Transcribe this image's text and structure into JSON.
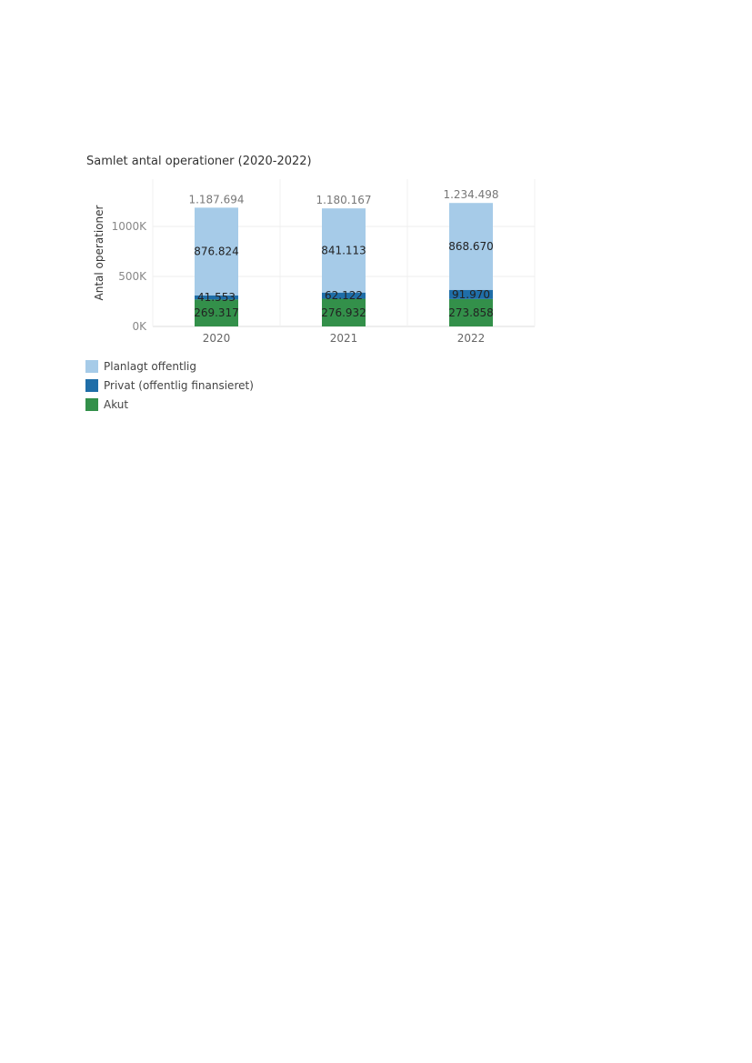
{
  "chart_data": {
    "type": "bar",
    "stacked": true,
    "title": "Samlet antal operationer (2020-2022)",
    "xlabel": "",
    "ylabel": "Antal operationer",
    "ylim": [
      0,
      1250000
    ],
    "yticks": [
      0,
      500000,
      1000000
    ],
    "ytick_labels": [
      "0K",
      "500K",
      "1000K"
    ],
    "categories": [
      "2020",
      "2021",
      "2022"
    ],
    "series": [
      {
        "name": "Akut",
        "color": "#33904a",
        "values": [
          269317,
          276932,
          273858
        ],
        "labels": [
          "269.317",
          "276.932",
          "273.858"
        ]
      },
      {
        "name": "Privat (offentlig finansieret)",
        "color": "#1f6ea8",
        "values": [
          41553,
          62122,
          91970
        ],
        "labels": [
          "41.553",
          "62.122",
          "91.970"
        ]
      },
      {
        "name": "Planlagt offentlig",
        "color": "#a6cbe8",
        "values": [
          876824,
          841113,
          868670
        ],
        "labels": [
          "876.824",
          "841.113",
          "868.670"
        ]
      }
    ],
    "totals": [
      1187694,
      1180167,
      1234498
    ],
    "total_labels": [
      "1.187.694",
      "1.180.167",
      "1.234.498"
    ],
    "legend": [
      "Planlagt offentlig",
      "Privat (offentlig finansieret)",
      "Akut"
    ],
    "legend_colors": [
      "#a6cbe8",
      "#1f6ea8",
      "#33904a"
    ],
    "legend_position": "bottom-left",
    "grid": true
  }
}
